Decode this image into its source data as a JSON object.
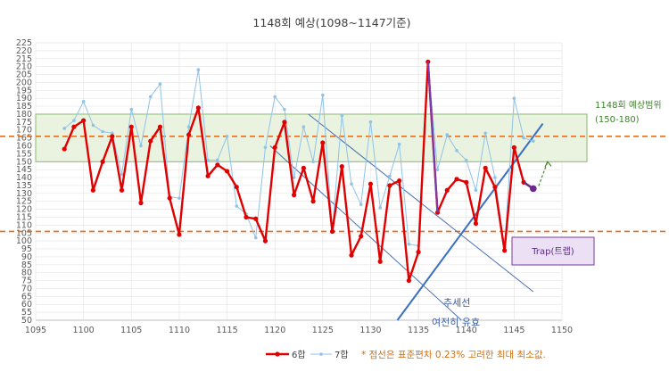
{
  "chart_data": {
    "type": "line",
    "title": "1148회 예상(1098~1147기준)",
    "xlim": [
      1095,
      1150
    ],
    "ylim": [
      50,
      225
    ],
    "x_ticks": [
      1095,
      1100,
      1105,
      1110,
      1115,
      1120,
      1125,
      1130,
      1135,
      1140,
      1145,
      1150
    ],
    "y_ticks": [
      50,
      55,
      60,
      65,
      70,
      75,
      80,
      85,
      90,
      95,
      100,
      105,
      110,
      115,
      120,
      125,
      130,
      135,
      140,
      145,
      150,
      155,
      160,
      165,
      170,
      175,
      180,
      185,
      190,
      195,
      200,
      205,
      210,
      215,
      220,
      225
    ],
    "grid": true,
    "legend_position": "bottom",
    "series": [
      {
        "name": "6합",
        "color": "#e00000",
        "x": [
          1098,
          1099,
          1100,
          1101,
          1102,
          1103,
          1104,
          1105,
          1106,
          1107,
          1108,
          1109,
          1110,
          1111,
          1112,
          1113,
          1114,
          1115,
          1116,
          1117,
          1118,
          1119,
          1120,
          1121,
          1122,
          1123,
          1124,
          1125,
          1126,
          1127,
          1128,
          1129,
          1130,
          1131,
          1132,
          1133,
          1134,
          1135,
          1136,
          1137,
          1138,
          1139,
          1140,
          1141,
          1142,
          1143,
          1144,
          1145,
          1146,
          1147
        ],
        "y": [
          158,
          172,
          176,
          132,
          150,
          166,
          132,
          172,
          124,
          163,
          172,
          127,
          104,
          167,
          184,
          141,
          148,
          144,
          134,
          115,
          114,
          100,
          159,
          175,
          129,
          146,
          125,
          162,
          106,
          147,
          91,
          103,
          136,
          87,
          135,
          138,
          75,
          93,
          213,
          118,
          132,
          139,
          137,
          111,
          146,
          134,
          94,
          159,
          137,
          133
        ]
      },
      {
        "name": "7합",
        "color": "#8fc3e8",
        "x": [
          1098,
          1099,
          1100,
          1101,
          1102,
          1103,
          1104,
          1105,
          1106,
          1107,
          1108,
          1109,
          1110,
          1111,
          1112,
          1113,
          1114,
          1115,
          1116,
          1117,
          1118,
          1119,
          1120,
          1121,
          1122,
          1123,
          1124,
          1125,
          1126,
          1127,
          1128,
          1129,
          1130,
          1131,
          1132,
          1133,
          1134,
          1135,
          1136,
          1137,
          1138,
          1139,
          1140,
          1141,
          1142,
          1143,
          1144,
          1145,
          1146,
          1147
        ],
        "y": [
          171,
          176,
          188,
          173,
          169,
          168,
          142,
          183,
          160,
          191,
          199,
          128,
          127,
          172,
          208,
          151,
          151,
          166,
          122,
          117,
          102,
          159,
          191,
          183,
          140,
          172,
          150,
          192,
          107,
          179,
          136,
          123,
          175,
          121,
          141,
          161,
          98,
          97,
          213,
          145,
          167,
          157,
          151,
          132,
          168,
          140,
          96,
          190,
          165,
          163
        ]
      }
    ],
    "bands": [
      {
        "label": "1148회 예상범위",
        "range_label": "(150-180)",
        "y_from": 150,
        "y_to": 180,
        "color": "#8ab86e"
      }
    ],
    "ref_lines": [
      {
        "y": 166,
        "color": "#e07020"
      },
      {
        "y": 106,
        "color": "#e07020"
      }
    ],
    "trend_lines": [
      {
        "x1": 1132.8,
        "y1": 50,
        "x2": 1148,
        "y2": 174,
        "color": "#3a6fc4"
      },
      {
        "x1": 1119.5,
        "y1": 160,
        "x2": 1139.5,
        "y2": 50,
        "color": "#4a6fb0"
      },
      {
        "x1": 1123.5,
        "y1": 180,
        "x2": 1147,
        "y2": 68,
        "color": "#4a6fb0"
      }
    ],
    "annotations": {
      "trap": "Trap(트랩)",
      "trend": "추세선",
      "still_valid": "여전히 유효",
      "note": "* 점선은 표준편차 0.23% 고려한 최대 최소값."
    }
  }
}
